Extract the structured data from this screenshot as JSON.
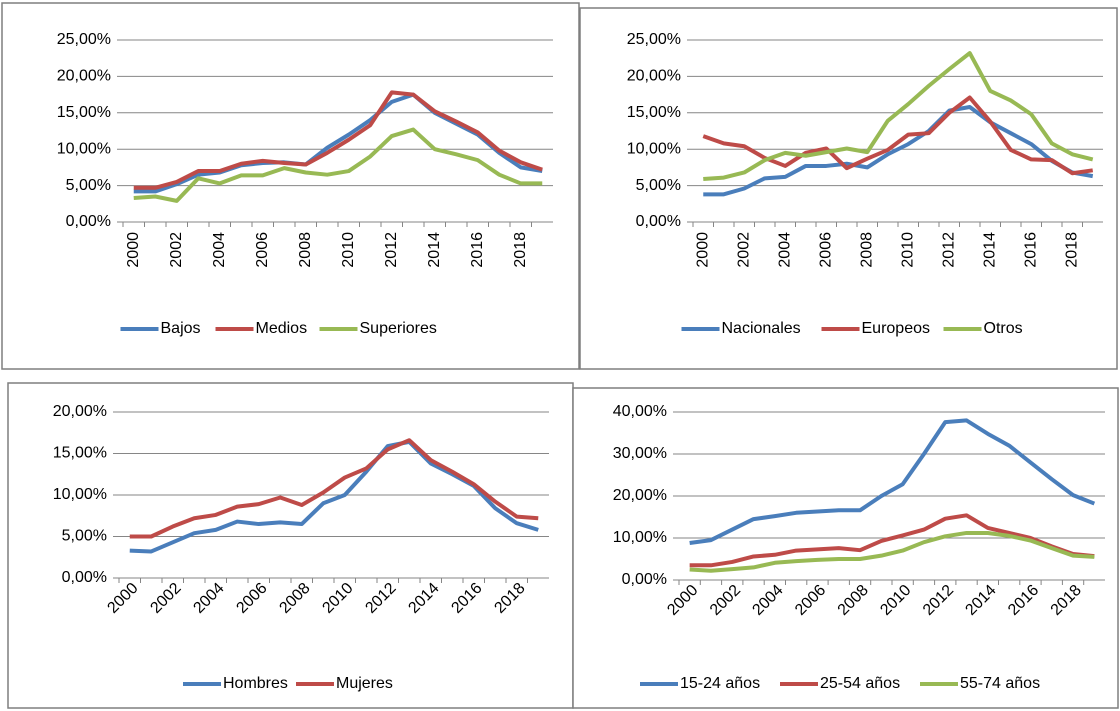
{
  "chart_data": [
    {
      "type": "line",
      "categories": [
        "2000",
        null,
        "2002",
        null,
        "2004",
        null,
        "2006",
        null,
        "2008",
        null,
        "2010",
        null,
        "2012",
        null,
        "2014",
        null,
        "2016",
        null,
        "2018",
        null
      ],
      "series": [
        {
          "name": "Bajos",
          "color": "#4a7ebb",
          "values": [
            4.2,
            4.2,
            5.2,
            6.5,
            6.8,
            7.8,
            8.1,
            8.2,
            7.9,
            10.2,
            12,
            14,
            16.5,
            17.5,
            15,
            13.5,
            12,
            9.5,
            7.5,
            7
          ]
        },
        {
          "name": "Medios",
          "color": "#be4b48",
          "values": [
            4.7,
            4.7,
            5.5,
            7,
            7,
            8,
            8.4,
            8.1,
            7.9,
            9.5,
            11.3,
            13.3,
            17.8,
            17.5,
            15.2,
            13.8,
            12.3,
            9.8,
            8.2,
            7.2
          ]
        },
        {
          "name": "Superiores",
          "color": "#98b954",
          "values": [
            3.3,
            3.5,
            2.9,
            6,
            5.3,
            6.4,
            6.4,
            7.4,
            6.8,
            6.5,
            7,
            9,
            11.8,
            12.7,
            10,
            9.3,
            8.5,
            6.5,
            5.3,
            5.3
          ]
        }
      ],
      "ylim": [
        0,
        25
      ],
      "yticks": [
        {
          "value": 0,
          "label": "0,00%"
        },
        {
          "value": 5,
          "label": "5,00%"
        },
        {
          "value": 10,
          "label": "10,00%"
        },
        {
          "value": 15,
          "label": "15,00%"
        },
        {
          "value": 20,
          "label": "20,00%"
        },
        {
          "value": 25,
          "label": "25,00%"
        }
      ],
      "grid": true,
      "legend": "bottom"
    },
    {
      "type": "line",
      "categories": [
        "2000",
        null,
        "2002",
        null,
        "2004",
        null,
        "2006",
        null,
        "2008",
        null,
        "2010",
        null,
        "2012",
        null,
        "2014",
        null,
        "2016",
        null,
        "2018",
        null
      ],
      "series": [
        {
          "name": "Nacionales",
          "color": "#4a7ebb",
          "values": [
            3.8,
            3.8,
            4.6,
            6,
            6.2,
            7.7,
            7.7,
            8,
            7.5,
            9.3,
            10.7,
            12.5,
            15.3,
            15.8,
            13.7,
            12.2,
            10.7,
            8.4,
            6.8,
            6.3
          ]
        },
        {
          "name": "Europeos",
          "color": "#be4b48",
          "values": [
            11.8,
            10.8,
            10.4,
            8.8,
            7.7,
            9.5,
            10.1,
            7.4,
            8.7,
            9.9,
            12,
            12.2,
            15,
            17.1,
            13.8,
            9.9,
            8.6,
            8.5,
            6.7,
            7.1
          ]
        },
        {
          "name": "Otros",
          "color": "#98b954",
          "values": [
            5.9,
            6.1,
            6.8,
            8.5,
            9.5,
            9.1,
            9.6,
            10.1,
            9.6,
            13.9,
            16.2,
            18.7,
            21,
            23.2,
            18,
            16.7,
            14.8,
            10.8,
            9.3,
            8.6
          ]
        }
      ],
      "ylim": [
        0,
        25
      ],
      "yticks": [
        {
          "value": 0,
          "label": "0,00%"
        },
        {
          "value": 5,
          "label": "5,00%"
        },
        {
          "value": 10,
          "label": "10,00%"
        },
        {
          "value": 15,
          "label": "15,00%"
        },
        {
          "value": 20,
          "label": "20,00%"
        },
        {
          "value": 25,
          "label": "25,00%"
        }
      ],
      "grid": true,
      "legend": "bottom"
    },
    {
      "type": "line",
      "categories": [
        "2000",
        null,
        "2002",
        null,
        "2004",
        null,
        "2006",
        null,
        "2008",
        null,
        "2010",
        null,
        "2012",
        null,
        "2014",
        null,
        "2016",
        null,
        "2018",
        null
      ],
      "series": [
        {
          "name": "Hombres",
          "color": "#4a7ebb",
          "values": [
            3.3,
            3.2,
            4.3,
            5.4,
            5.8,
            6.8,
            6.5,
            6.7,
            6.5,
            9,
            10,
            12.8,
            15.9,
            16.4,
            13.8,
            12.5,
            11.1,
            8.4,
            6.6,
            5.8
          ]
        },
        {
          "name": "Mujeres",
          "color": "#be4b48",
          "values": [
            5,
            5,
            6.2,
            7.2,
            7.6,
            8.6,
            8.9,
            9.7,
            8.8,
            10.3,
            12.1,
            13.2,
            15.5,
            16.6,
            14.2,
            12.8,
            11.3,
            9.2,
            7.4,
            7.2
          ]
        }
      ],
      "ylim": [
        0,
        20
      ],
      "yticks": [
        {
          "value": 0,
          "label": "0,00%"
        },
        {
          "value": 5,
          "label": "5,00%"
        },
        {
          "value": 10,
          "label": "10,00%"
        },
        {
          "value": 15,
          "label": "15,00%"
        },
        {
          "value": 20,
          "label": "20,00%"
        }
      ],
      "grid": true,
      "legend": "bottom"
    },
    {
      "type": "line",
      "categories": [
        "2000",
        null,
        "2002",
        null,
        "2004",
        null,
        "2006",
        null,
        "2008",
        null,
        "2010",
        null,
        "2012",
        null,
        "2014",
        null,
        "2016",
        null,
        "2018",
        null
      ],
      "series": [
        {
          "name": "15-24 años",
          "color": "#4a7ebb",
          "values": [
            8.8,
            9.5,
            12,
            14.5,
            15.2,
            16,
            16.3,
            16.6,
            16.6,
            20,
            22.8,
            30,
            37.6,
            38,
            34.8,
            32,
            28,
            24,
            20.2,
            18.2
          ]
        },
        {
          "name": "25-54 años",
          "color": "#be4b48",
          "values": [
            3.5,
            3.5,
            4.3,
            5.6,
            6,
            7,
            7.3,
            7.6,
            7.1,
            9.3,
            10.6,
            12,
            14.6,
            15.4,
            12.4,
            11.2,
            10,
            8,
            6.2,
            5.7
          ]
        },
        {
          "name": "55-74 años",
          "color": "#98b954",
          "values": [
            2.5,
            2.2,
            2.6,
            3,
            4.1,
            4.5,
            4.8,
            5,
            5,
            5.8,
            7,
            9,
            10.4,
            11.2,
            11.2,
            10.5,
            9.4,
            7.6,
            5.8,
            5.5
          ]
        }
      ],
      "ylim": [
        0,
        40
      ],
      "yticks": [
        {
          "value": 0,
          "label": "0,00%"
        },
        {
          "value": 10,
          "label": "10,00%"
        },
        {
          "value": 20,
          "label": "20,00%"
        },
        {
          "value": 30,
          "label": "30,00%"
        },
        {
          "value": 40,
          "label": "40,00%"
        }
      ],
      "grid": true,
      "legend": "bottom"
    }
  ]
}
